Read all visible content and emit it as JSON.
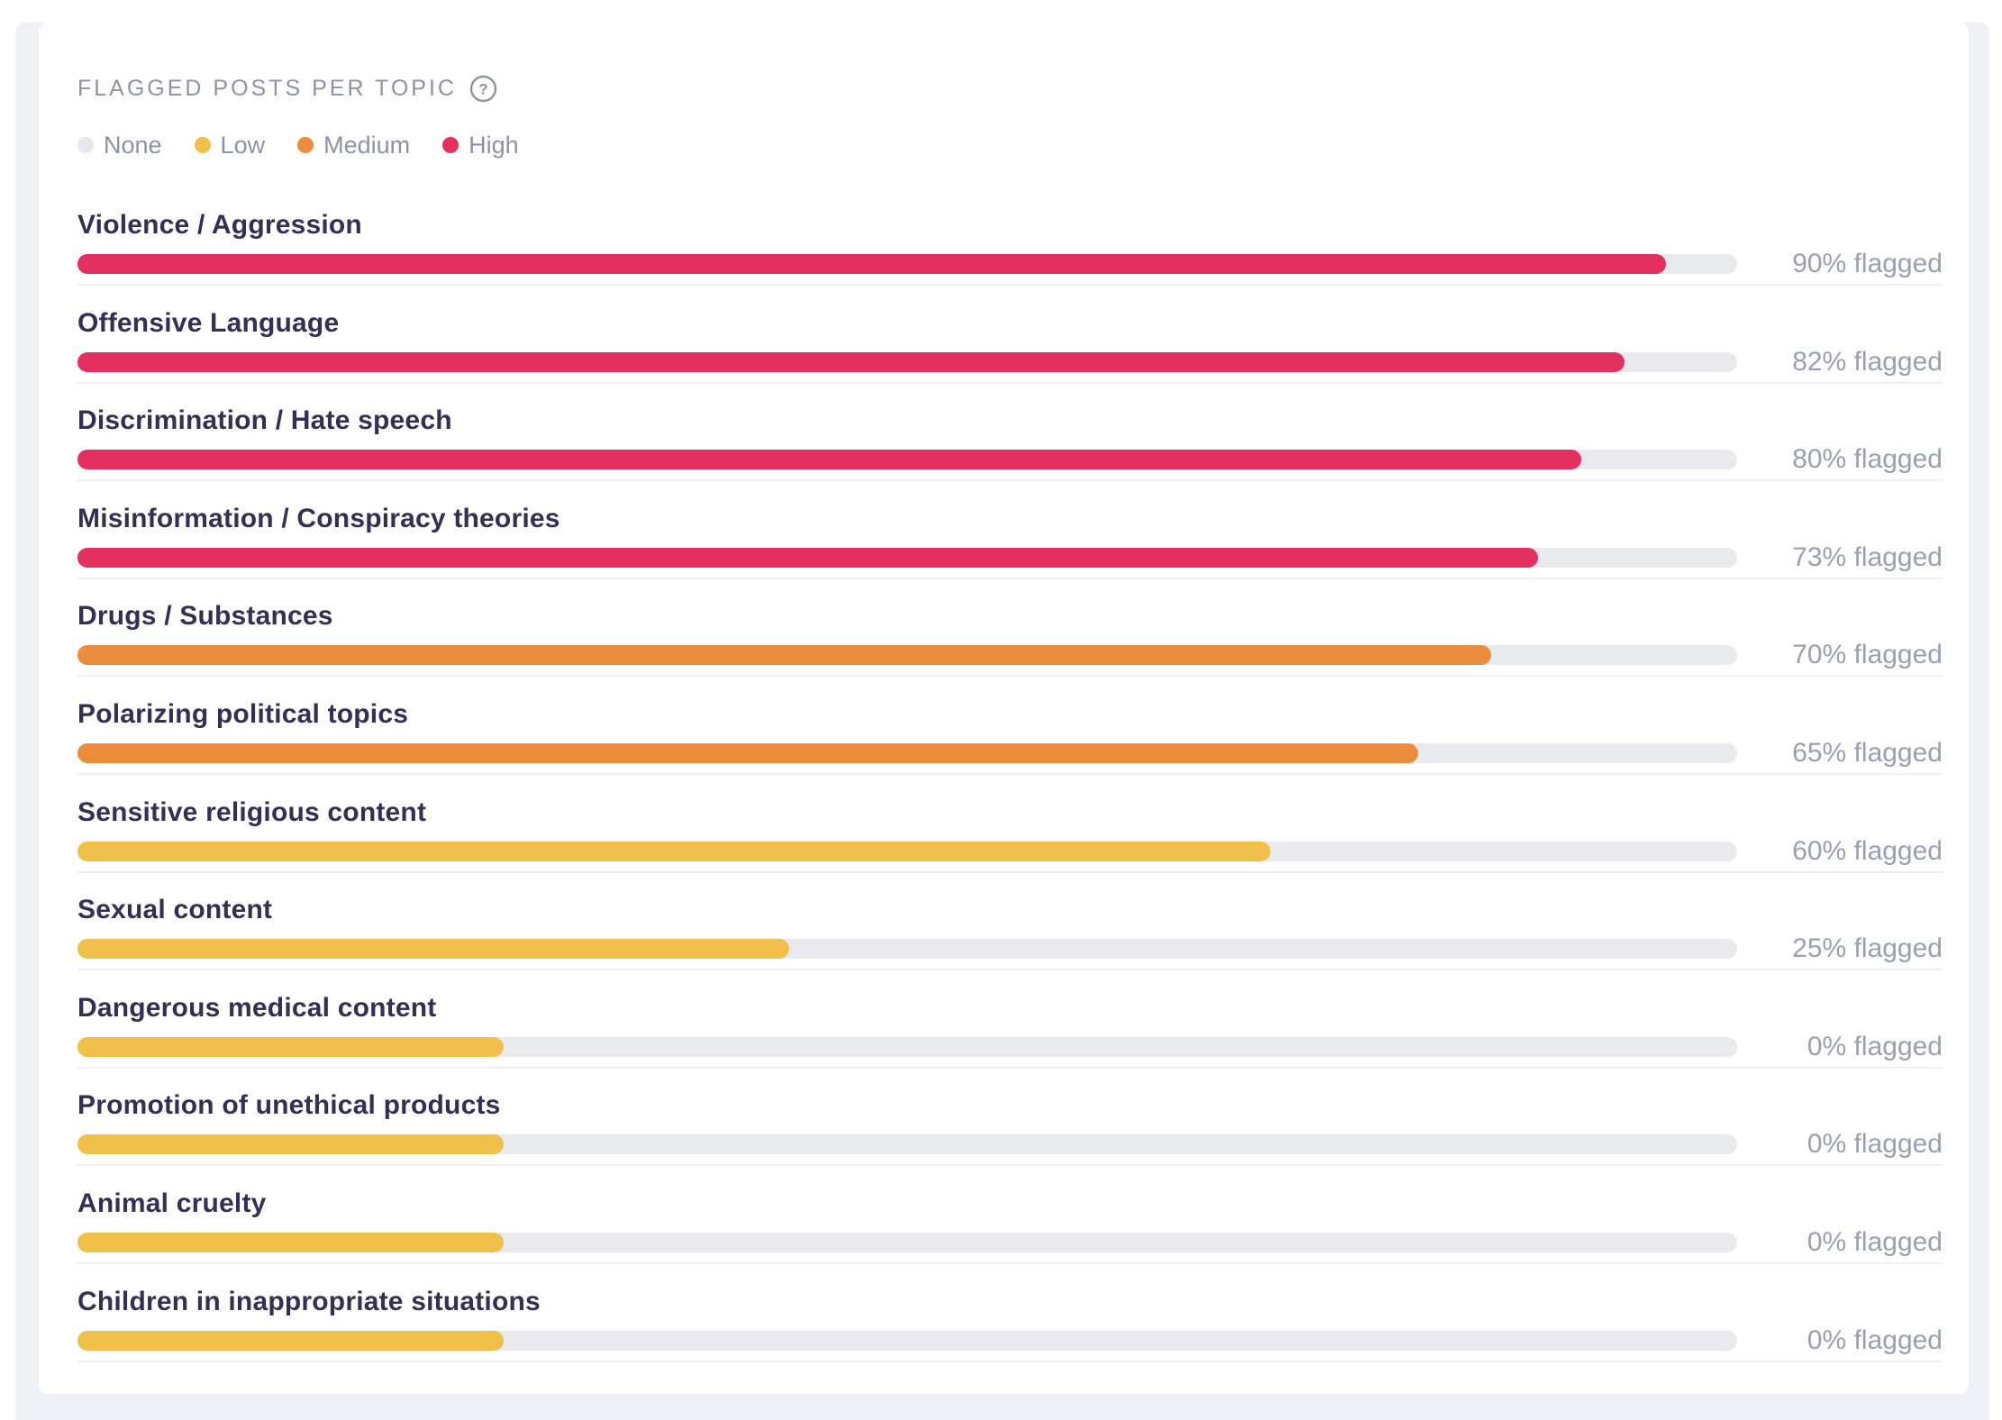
{
  "panel": {
    "title": "FLAGGED POSTS PER TOPIC",
    "help_icon": "question-circle-icon"
  },
  "legend": [
    {
      "label": "None",
      "color": "#e7e8ee"
    },
    {
      "label": "Low",
      "color": "#f0c04a"
    },
    {
      "label": "Medium",
      "color": "#ec8c3d"
    },
    {
      "label": "High",
      "color": "#e4305f"
    }
  ],
  "colors": {
    "card_background": "#ffffff",
    "page_background": "#eef0f5",
    "bar_track": "#e9eaee",
    "row_separator": "#eff0f4",
    "topic_label_text": "#352e55",
    "value_text": "#9aa0af",
    "title_text": "#8e93a4"
  },
  "chart_data": {
    "type": "bar",
    "orientation": "horizontal",
    "title": "FLAGGED POSTS PER TOPIC",
    "value_unit": "% flagged",
    "value_range": [
      0,
      100
    ],
    "legend_position": "top-left",
    "grid": false,
    "severity_levels": [
      "None",
      "Low",
      "Medium",
      "High"
    ],
    "rows": [
      {
        "topic": "Violence / Aggression",
        "flagged_pct": 90,
        "value_label": "90% flagged",
        "severity": "High",
        "bar_fill_pct": 95.7
      },
      {
        "topic": "Offensive Language",
        "flagged_pct": 82,
        "value_label": "82% flagged",
        "severity": "High",
        "bar_fill_pct": 93.2
      },
      {
        "topic": "Discrimination / Hate speech",
        "flagged_pct": 80,
        "value_label": "80% flagged",
        "severity": "High",
        "bar_fill_pct": 90.6
      },
      {
        "topic": "Misinformation / Conspiracy theories",
        "flagged_pct": 73,
        "value_label": "73% flagged",
        "severity": "High",
        "bar_fill_pct": 88.0
      },
      {
        "topic": "Drugs / Substances",
        "flagged_pct": 70,
        "value_label": "70% flagged",
        "severity": "Medium",
        "bar_fill_pct": 85.2
      },
      {
        "topic": "Polarizing political topics",
        "flagged_pct": 65,
        "value_label": "65% flagged",
        "severity": "Medium",
        "bar_fill_pct": 80.8
      },
      {
        "topic": "Sensitive religious content",
        "flagged_pct": 60,
        "value_label": "60% flagged",
        "severity": "Low",
        "bar_fill_pct": 71.9
      },
      {
        "topic": "Sexual content",
        "flagged_pct": 25,
        "value_label": "25% flagged",
        "severity": "Low",
        "bar_fill_pct": 42.9
      },
      {
        "topic": "Dangerous medical content",
        "flagged_pct": 0,
        "value_label": "0% flagged",
        "severity": "Low",
        "bar_fill_pct": 25.7
      },
      {
        "topic": "Promotion of unethical products",
        "flagged_pct": 0,
        "value_label": "0% flagged",
        "severity": "Low",
        "bar_fill_pct": 25.7
      },
      {
        "topic": "Animal cruelty",
        "flagged_pct": 0,
        "value_label": "0% flagged",
        "severity": "Low",
        "bar_fill_pct": 25.7
      },
      {
        "topic": "Children in inappropriate situations",
        "flagged_pct": 0,
        "value_label": "0% flagged",
        "severity": "Low",
        "bar_fill_pct": 25.7
      }
    ]
  }
}
